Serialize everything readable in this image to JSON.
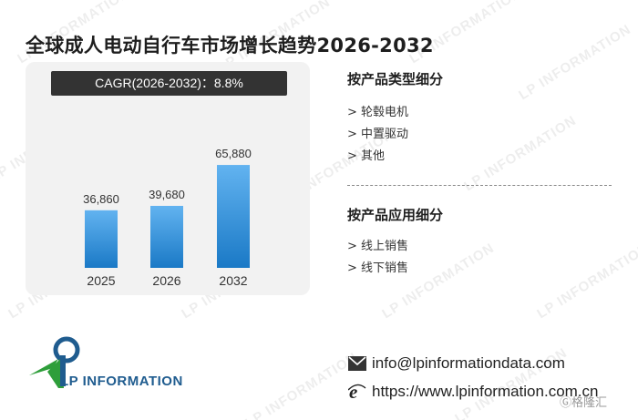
{
  "title": "全球成人电动自行车市场增长趋势2026-2032",
  "cagr_label": "CAGR(2026-2032)：8.8%",
  "chart_data": {
    "type": "bar",
    "title": "",
    "categories": [
      "2025",
      "2026",
      "2032"
    ],
    "values": [
      36860,
      39680,
      65880
    ],
    "value_labels": [
      "36,860",
      "39,680",
      "65,880"
    ],
    "xlabel": "",
    "ylabel": "",
    "ylim": [
      0,
      70000
    ],
    "grid": false,
    "bar_color_top": "#62b3f0",
    "bar_color_bottom": "#1a79c6"
  },
  "segments": {
    "by_type": {
      "title": "按产品类型细分",
      "items": [
        "> 轮毂电机",
        "> 中置驱动",
        "> 其他"
      ]
    },
    "by_application": {
      "title": "按产品应用细分",
      "items": [
        "> 线上销售",
        "> 线下销售"
      ]
    }
  },
  "logo": {
    "text": "LP INFORMATION",
    "colors": {
      "blue": "#1f5c8f",
      "green": "#2e9e3a"
    }
  },
  "contact": {
    "email": "info@lpinformationdata.com",
    "website": "https://www.lpinformation.com.cn",
    "email_icon": "envelope-icon",
    "web_icon": "internet-explorer-icon"
  },
  "watermark_text": "LP INFORMATION",
  "corner_brand": "Ⓖ格隆汇"
}
